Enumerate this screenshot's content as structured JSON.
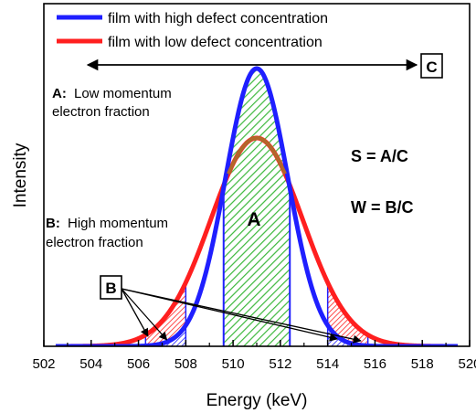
{
  "chart_data": {
    "type": "line",
    "xlabel": "Energy (keV)",
    "ylabel": "Intensity",
    "xlim": [
      502,
      520
    ],
    "x_ticks": [
      "502",
      "504",
      "506",
      "508",
      "510",
      "512",
      "514",
      "516",
      "518",
      "520"
    ],
    "legend_position": "top-left",
    "series": [
      {
        "name": "film with high defect concentration",
        "color": "#1f1fff",
        "center": 511,
        "peak": 1.0,
        "sigma": 1.32
      },
      {
        "name": "film with low defect concentration",
        "color": "#ff1f1f",
        "center": 511,
        "peak": 0.75,
        "sigma": 1.95
      }
    ],
    "regions": {
      "A": {
        "label": "A",
        "range": [
          509.6,
          512.4
        ],
        "color": "#3cb83c"
      },
      "B_left": {
        "range": [
          506.3,
          508.0
        ]
      },
      "B_right": {
        "range": [
          514.0,
          515.7
        ]
      }
    },
    "annotations": {
      "C_label": "C",
      "B_label": "B",
      "A_desc_key": "A:",
      "A_desc_line1": "Low momentum",
      "A_desc_line2": "electron fraction",
      "B_desc_key": "B:",
      "B_desc_line1": "High momentum",
      "B_desc_line2": "electron fraction",
      "S_formula": "S = A/C",
      "W_formula": "W = B/C"
    }
  }
}
